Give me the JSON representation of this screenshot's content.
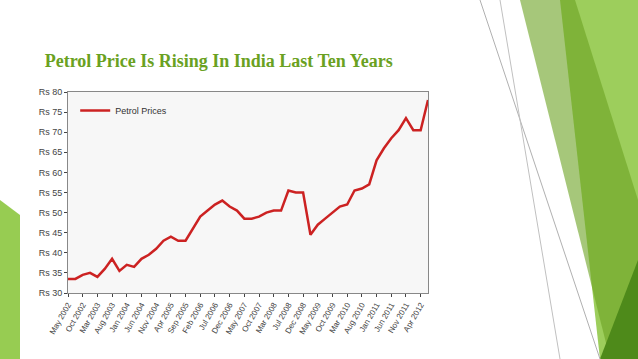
{
  "chart_data": {
    "type": "line",
    "title": "Petrol Price Is Rising In India Last Ten Years",
    "categories": [
      "May 2002",
      null,
      "Oct 2002",
      null,
      "Mar 2003",
      null,
      "Aug 2003",
      null,
      "Jan 2004",
      null,
      "Jun 2004",
      null,
      "Nov 2004",
      null,
      "Apr 2005",
      null,
      "Sep 2005",
      null,
      "Feb 2006",
      null,
      "Jul 2006",
      null,
      "Dec 2006",
      null,
      "May 2007",
      null,
      "Oct 2007",
      null,
      "Mar 2008",
      null,
      "Jul 2008",
      null,
      "Dec 2008",
      null,
      "May 2009",
      null,
      "Oct 2009",
      null,
      "Mar 2010",
      null,
      "Aug 2010",
      null,
      "Jan 2011",
      null,
      "Jun 2011",
      null,
      "Nov 2011",
      null,
      "Apr 2012",
      null
    ],
    "series": [
      {
        "name": "Petrol Prices",
        "color": "#cc2222",
        "values": [
          33.5,
          33.5,
          34.5,
          35,
          34,
          36,
          38.5,
          35.5,
          37,
          36.5,
          38.5,
          39.5,
          41,
          43,
          44,
          43,
          43,
          46,
          49,
          50.5,
          52,
          53,
          51.5,
          50.5,
          48.5,
          48.5,
          49,
          50,
          50.5,
          50.5,
          55.5,
          55,
          55,
          44.5,
          47,
          48.5,
          50,
          51.5,
          52,
          55.5,
          56,
          57,
          63,
          66,
          68.5,
          70.5,
          73.5,
          70.5,
          70.5,
          78
        ]
      }
    ],
    "ylim": [
      30,
      80
    ],
    "yticks": [
      {
        "value": 30,
        "label": "Rs 30"
      },
      {
        "value": 35,
        "label": "Rs 35"
      },
      {
        "value": 40,
        "label": "Rs 40"
      },
      {
        "value": 45,
        "label": "Rs 45"
      },
      {
        "value": 50,
        "label": "Rs 50"
      },
      {
        "value": 55,
        "label": "Rs 55"
      },
      {
        "value": 60,
        "label": "Rs 60"
      },
      {
        "value": 65,
        "label": "Rs 65"
      },
      {
        "value": 70,
        "label": "Rs 70"
      },
      {
        "value": 75,
        "label": "Rs 75"
      },
      {
        "value": 80,
        "label": "Rs 80"
      }
    ],
    "grid": false,
    "legend": "upper left"
  }
}
